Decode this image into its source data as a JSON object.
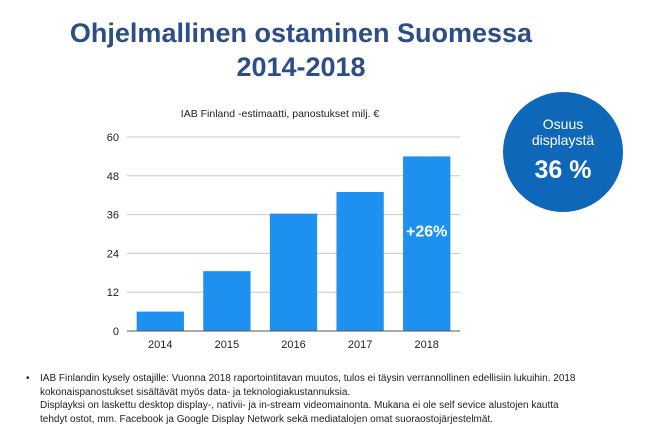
{
  "title": {
    "line1": "Ohjelmallinen ostaminen Suomessa",
    "line2": "2014-2018"
  },
  "share": {
    "label_line1": "Osuus",
    "label_line2": "displaystä",
    "value": "36 %"
  },
  "chart_data": {
    "type": "bar",
    "title": "IAB Finland -estimaatti, panostukset milj. €",
    "categories": [
      "2014",
      "2015",
      "2016",
      "2017",
      "2018"
    ],
    "values": [
      6,
      18.5,
      36.3,
      43,
      54
    ],
    "ylim": [
      0,
      60
    ],
    "yticks": [
      0,
      12,
      24,
      36,
      48,
      60
    ],
    "bar_color": "#1e90f0",
    "grid": true,
    "annotation": {
      "text": "+26%",
      "category": "2018"
    }
  },
  "notes": {
    "bullet": "•",
    "lines": [
      "IAB Finlandin kysely ostajille: Vuonna 2018 raportointitavan muutos, tulos ei täysin verrannollinen edellisiin lukuihin. 2018",
      "kokonaispanostukset sisältävät myös data- ja teknologiakustannuksia.",
      "Displayksi on laskettu desktop display-, nativii- ja in-stream videomainonta. Mukana ei ole self sevice alustojen kautta",
      "tehdyt ostot, mm. Facebook ja Google Display Network sekä mediatalojen omat suoraostojärjestelmät."
    ]
  }
}
